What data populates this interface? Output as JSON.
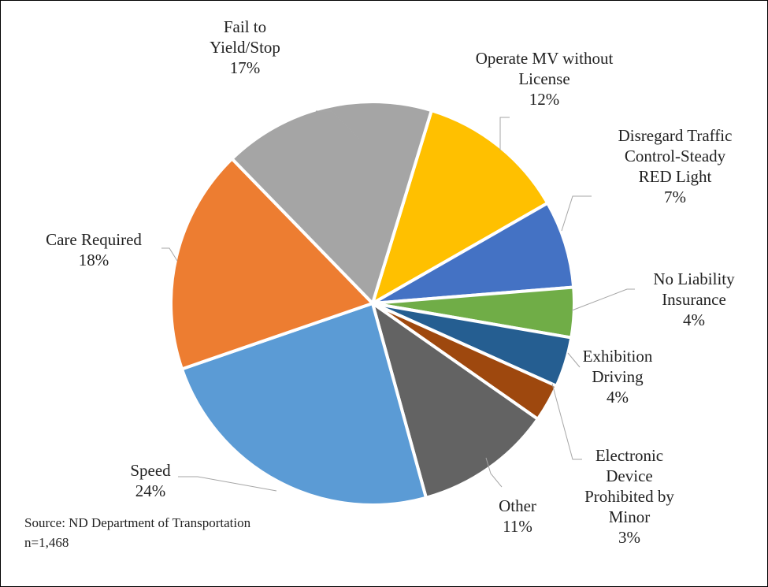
{
  "chart_data": {
    "type": "pie",
    "categories": [
      "Operate MV without License",
      "Disregard Traffic Control-Steady RED Light",
      "No Liability Insurance",
      "Exhibition Driving",
      "Electronic Device Prohibited by Minor",
      "Other",
      "Speed",
      "Care Required",
      "Fail to Yield/Stop"
    ],
    "values": [
      12,
      7,
      4,
      4,
      3,
      11,
      24,
      18,
      17
    ],
    "value_labels": [
      "12%",
      "7%",
      "4%",
      "4%",
      "3%",
      "11%",
      "24%",
      "18%",
      "17%"
    ],
    "colors": [
      "#FFC000",
      "#4472C4",
      "#70AD47",
      "#255E91",
      "#9E480E",
      "#636363",
      "#5B9BD5",
      "#ED7D31",
      "#A5A5A5"
    ],
    "notes": [
      "Source: ND Department of Transportation",
      "n=1,468"
    ]
  }
}
